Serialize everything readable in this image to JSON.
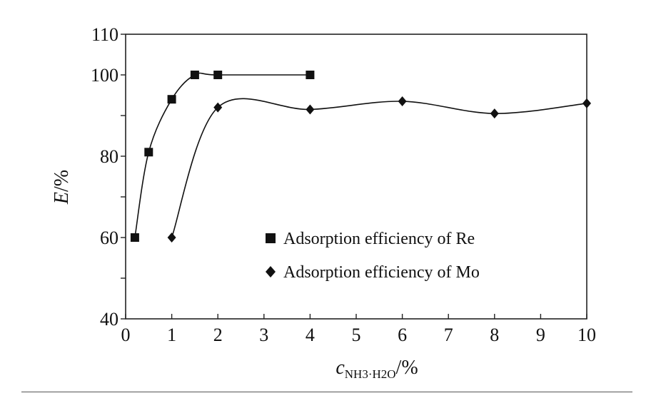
{
  "chart_data": {
    "type": "line",
    "xlabel": {
      "main": "c",
      "sub": "NH3·H2O",
      "unit": "/%"
    },
    "ylabel": {
      "main": "E",
      "unit": "/%"
    },
    "xlim": [
      0,
      10
    ],
    "ylim": [
      40,
      110
    ],
    "xticks": [
      "0",
      "1",
      "2",
      "3",
      "4",
      "5",
      "6",
      "7",
      "8",
      "9",
      "10"
    ],
    "yticks": [
      "40",
      "60",
      "80",
      "100",
      "110"
    ],
    "grid": false,
    "legend_position": "bottom-right",
    "series": [
      {
        "name": "Adsorption efficiency of Re",
        "marker": "square",
        "points": [
          [
            0.2,
            60
          ],
          [
            0.5,
            81
          ],
          [
            1.0,
            94
          ],
          [
            1.5,
            100
          ],
          [
            2.0,
            100
          ],
          [
            4.0,
            100
          ]
        ]
      },
      {
        "name": "Adsorption efficiency of Mo",
        "marker": "diamond",
        "points": [
          [
            1.0,
            60
          ],
          [
            2.0,
            92
          ],
          [
            4.0,
            91.5
          ],
          [
            6.0,
            93.5
          ],
          [
            8.0,
            90.5
          ],
          [
            10.0,
            93
          ]
        ]
      }
    ]
  }
}
